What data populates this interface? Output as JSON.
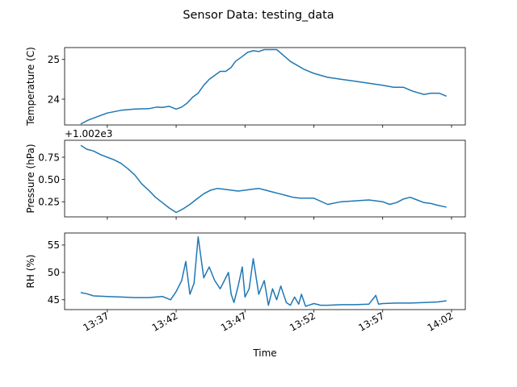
{
  "chart_data": {
    "type": "line",
    "title": "Sensor Data: testing_data",
    "xlabel": "Time",
    "x_tick_labels": [
      "13:37",
      "13:42",
      "13:47",
      "13:52",
      "13:57",
      "14:02"
    ],
    "x_tick_minutes": [
      817,
      822,
      827,
      832,
      837,
      842
    ],
    "xlim_minutes": [
      813.9,
      843.0
    ],
    "line_color": "#1f77b4",
    "grid": false,
    "shared_x": true,
    "panels": [
      {
        "name": "temperature",
        "ylabel": "Temperature (C)",
        "ylim": [
          23.35,
          25.3
        ],
        "yticks": [
          24,
          25
        ],
        "ytick_labels": [
          "24",
          "25"
        ],
        "offset_label": "",
        "series": {
          "x": [
            815.1,
            815.6,
            816.2,
            817.0,
            818.0,
            819.0,
            820.0,
            820.6,
            821.0,
            821.5,
            822.0,
            822.4,
            822.8,
            823.2,
            823.6,
            824.0,
            824.4,
            824.8,
            825.2,
            825.6,
            826.0,
            826.3,
            826.7,
            827.2,
            827.6,
            828.0,
            828.4,
            828.8,
            829.3,
            829.8,
            830.3,
            830.8,
            831.3,
            832.0,
            833.0,
            834.0,
            835.0,
            836.0,
            837.0,
            837.8,
            838.5,
            839.2,
            840.0,
            840.5,
            841.1,
            841.6
          ],
          "y": [
            23.38,
            23.47,
            23.55,
            23.65,
            23.72,
            23.75,
            23.76,
            23.8,
            23.79,
            23.82,
            23.75,
            23.8,
            23.9,
            24.05,
            24.15,
            24.35,
            24.5,
            24.6,
            24.7,
            24.7,
            24.8,
            24.95,
            25.05,
            25.18,
            25.22,
            25.2,
            25.25,
            25.25,
            25.25,
            25.1,
            24.95,
            24.85,
            24.75,
            24.65,
            24.55,
            24.5,
            24.45,
            24.4,
            24.35,
            24.3,
            24.3,
            24.2,
            24.12,
            24.15,
            24.15,
            24.08
          ]
        }
      },
      {
        "name": "pressure",
        "ylabel": "Pressure (hPa)",
        "ylim": [
          0.08,
          0.94
        ],
        "yticks": [
          0.25,
          0.5,
          0.75
        ],
        "ytick_labels": [
          "0.25",
          "0.50",
          "0.75"
        ],
        "offset_label": "+1.002e3",
        "series": {
          "x": [
            815.1,
            815.5,
            816.0,
            816.5,
            817.0,
            817.5,
            818.0,
            818.5,
            819.0,
            819.5,
            820.0,
            820.5,
            821.0,
            821.5,
            822.0,
            822.5,
            823.0,
            823.5,
            824.0,
            824.5,
            825.0,
            825.5,
            826.0,
            826.5,
            827.0,
            827.5,
            828.0,
            828.5,
            829.0,
            829.5,
            830.0,
            830.5,
            831.0,
            831.5,
            832.0,
            833.0,
            834.0,
            835.0,
            836.0,
            837.0,
            837.5,
            838.0,
            838.5,
            839.0,
            839.5,
            840.0,
            840.5,
            841.0,
            841.6
          ],
          "y": [
            0.88,
            0.84,
            0.82,
            0.78,
            0.75,
            0.72,
            0.68,
            0.62,
            0.55,
            0.45,
            0.38,
            0.3,
            0.24,
            0.18,
            0.13,
            0.17,
            0.22,
            0.28,
            0.34,
            0.38,
            0.4,
            0.39,
            0.38,
            0.37,
            0.38,
            0.39,
            0.4,
            0.38,
            0.36,
            0.34,
            0.32,
            0.3,
            0.29,
            0.29,
            0.29,
            0.22,
            0.25,
            0.26,
            0.27,
            0.25,
            0.22,
            0.24,
            0.28,
            0.3,
            0.27,
            0.24,
            0.23,
            0.21,
            0.19
          ]
        }
      },
      {
        "name": "humidity",
        "ylabel": "RH (%)",
        "ylim": [
          43.2,
          57.2
        ],
        "yticks": [
          45,
          50,
          55
        ],
        "ytick_labels": [
          "45",
          "50",
          "55"
        ],
        "offset_label": "",
        "series": {
          "x": [
            815.1,
            815.5,
            816.0,
            817.0,
            818.0,
            819.0,
            820.0,
            821.0,
            821.6,
            822.0,
            822.4,
            822.7,
            823.0,
            823.3,
            823.6,
            824.0,
            824.4,
            824.8,
            825.2,
            825.5,
            825.8,
            826.0,
            826.2,
            826.5,
            826.8,
            827.0,
            827.3,
            827.6,
            828.0,
            828.4,
            828.7,
            829.0,
            829.3,
            829.6,
            830.0,
            830.3,
            830.6,
            830.9,
            831.1,
            831.4,
            832.0,
            832.5,
            833.0,
            834.0,
            835.0,
            836.0,
            836.5,
            836.7,
            837.0,
            838.0,
            839.0,
            840.0,
            841.0,
            841.6
          ],
          "y": [
            46.3,
            46.1,
            45.7,
            45.6,
            45.5,
            45.4,
            45.4,
            45.6,
            45.0,
            46.5,
            48.5,
            52.0,
            46.0,
            48.0,
            56.5,
            49.0,
            51.0,
            48.5,
            47.0,
            48.5,
            50.0,
            46.0,
            44.5,
            47.5,
            51.0,
            45.5,
            47.0,
            52.5,
            46.0,
            48.5,
            44.0,
            47.0,
            45.0,
            47.5,
            44.5,
            44.0,
            45.5,
            44.2,
            46.0,
            43.8,
            44.3,
            44.0,
            44.0,
            44.1,
            44.1,
            44.2,
            45.8,
            44.2,
            44.3,
            44.4,
            44.4,
            44.5,
            44.6,
            44.8
          ]
        }
      }
    ]
  }
}
